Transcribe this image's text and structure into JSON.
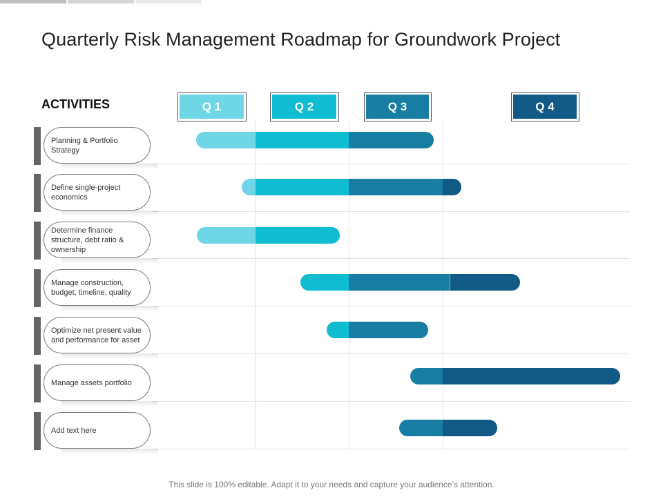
{
  "title": "Quarterly Risk Management Roadmap for Groundwork Project",
  "activities_heading": "ACTIVITIES",
  "quarters": [
    {
      "label": "Q 1",
      "color": "#6fd6e6"
    },
    {
      "label": "Q 2",
      "color": "#0fbcd2"
    },
    {
      "label": "Q 3",
      "color": "#177da2"
    },
    {
      "label": "Q 4",
      "color": "#115a85"
    }
  ],
  "colors": {
    "q1": "#6fd6e6",
    "q2": "#0fbcd2",
    "q3": "#177da2",
    "q4": "#115a85",
    "label_bar": "#666666"
  },
  "activities": [
    {
      "label": "Planning & Portfolio Strategy",
      "segments": [
        "q1",
        "q2",
        "q3"
      ]
    },
    {
      "label": "Define single-project economics",
      "segments": [
        "q1",
        "q2",
        "q3",
        "q4"
      ]
    },
    {
      "label": "Determine finance structure, debt ratio & ownership",
      "segments": [
        "q1",
        "q2"
      ]
    },
    {
      "label": "Manage construction, budget, timeline, quality",
      "segments": [
        "q2",
        "q3",
        "q3",
        "q4"
      ]
    },
    {
      "label": "Optimize net present value and performance for asset",
      "segments": [
        "q2",
        "q3"
      ]
    },
    {
      "label": "Manage assets portfolio",
      "segments": [
        "q3",
        "q4"
      ]
    },
    {
      "label": "Add text here",
      "segments": [
        "q3",
        "q4"
      ]
    }
  ],
  "footer": "This slide is 100% editable. Adapt it to your needs and capture your audience’s attention."
}
